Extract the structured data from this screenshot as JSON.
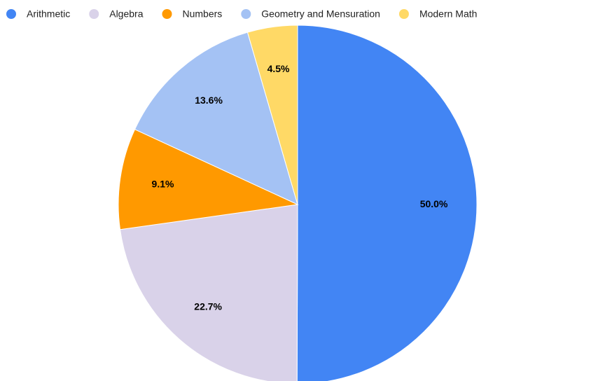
{
  "chart_data": {
    "type": "pie",
    "categories": [
      "Arithmetic",
      "Algebra",
      "Numbers",
      "Geometry and Mensuration",
      "Modern Math"
    ],
    "values": [
      50.0,
      22.7,
      9.1,
      13.6,
      4.5
    ],
    "value_labels": [
      "50.0%",
      "22.7%",
      "9.1%",
      "13.6%",
      "4.5%"
    ],
    "colors": [
      "#4285f4",
      "#d9d2e9",
      "#ff9900",
      "#a4c2f4",
      "#ffd966"
    ],
    "legend": "top"
  }
}
